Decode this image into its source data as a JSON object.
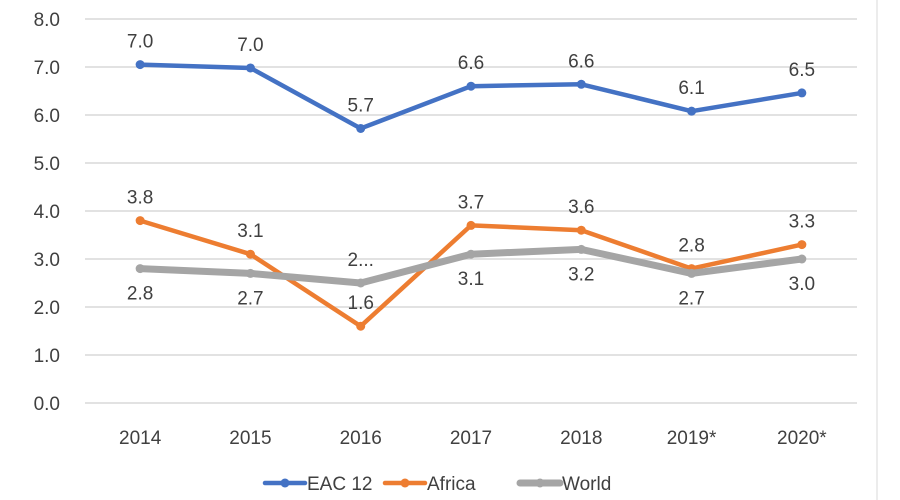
{
  "chart_data": {
    "type": "line",
    "categories": [
      "2014",
      "2015",
      "2016",
      "2017",
      "2018",
      "2019*",
      "2020*"
    ],
    "ylim": [
      0,
      8
    ],
    "yticks": [
      "0.0",
      "1.0",
      "2.0",
      "3.0",
      "4.0",
      "5.0",
      "6.0",
      "7.0",
      "8.0"
    ],
    "grid": true,
    "legend_placement": "bottom",
    "series": [
      {
        "name": "EAC 12",
        "color": "#4472C4",
        "values": [
          7.05,
          6.98,
          5.72,
          6.6,
          6.64,
          6.08,
          6.46
        ],
        "labels": [
          "7.0",
          "7.0",
          "5.7",
          "6.6",
          "6.6",
          "6.1",
          "6.5"
        ],
        "label_pos": [
          "above",
          "above",
          "above",
          "above",
          "above",
          "above",
          "above"
        ]
      },
      {
        "name": "Africa",
        "color": "#ED7D31",
        "values": [
          3.8,
          3.1,
          1.6,
          3.7,
          3.6,
          2.8,
          3.3
        ],
        "labels": [
          "3.8",
          "3.1",
          "1.6",
          "3.7",
          "3.6",
          "2.8",
          "3.3"
        ],
        "label_pos": [
          "above",
          "above",
          "above",
          "above",
          "above",
          "above",
          "above"
        ]
      },
      {
        "name": "World",
        "color": "#A5A5A5",
        "values": [
          2.8,
          2.7,
          2.5,
          3.1,
          3.2,
          2.7,
          3.0
        ],
        "labels": [
          "2.8",
          "2.7",
          "2...",
          "3.1",
          "3.2",
          "2.7",
          "3.0"
        ],
        "label_pos": [
          "below",
          "below",
          "above",
          "below",
          "below",
          "below",
          "below"
        ]
      }
    ]
  }
}
